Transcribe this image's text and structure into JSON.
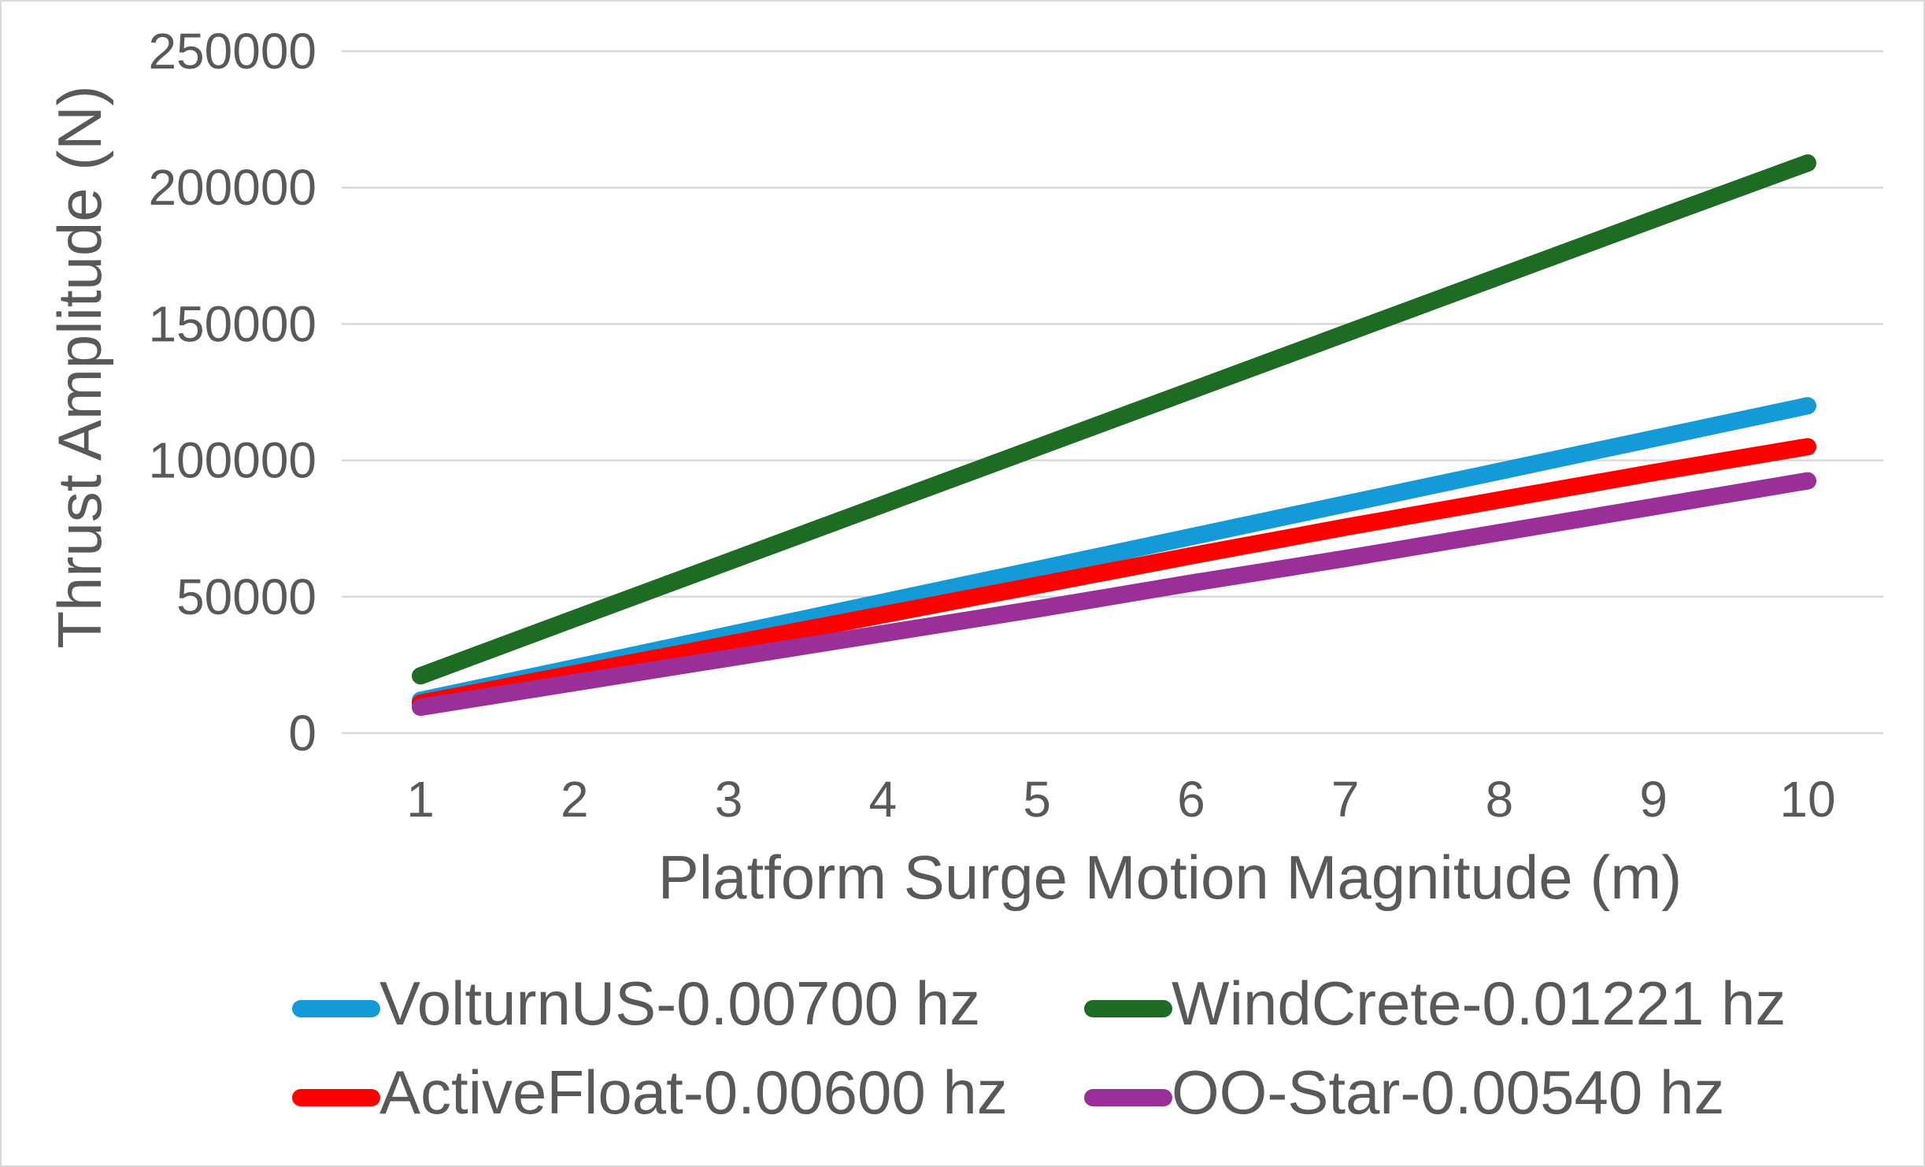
{
  "chart_data": {
    "type": "line",
    "title": "",
    "xlabel": "Platform Surge Motion Magnitude  (m)",
    "ylabel": "Thrust Amplitude  (N)",
    "x": [
      1,
      2,
      3,
      4,
      5,
      6,
      7,
      8,
      9,
      10
    ],
    "x_tick_labels": [
      "1",
      "2",
      "3",
      "4",
      "5",
      "6",
      "7",
      "8",
      "9",
      "10"
    ],
    "ylim": [
      0,
      250000
    ],
    "y_ticks": [
      0,
      50000,
      100000,
      150000,
      200000,
      250000
    ],
    "y_tick_labels": [
      "0",
      "50000",
      "100000",
      "150000",
      "200000",
      "250000"
    ],
    "grid": true,
    "legend_position": "bottom",
    "series": [
      {
        "name": "VolturnUS-0.00700 hz",
        "color": "#149bd7",
        "values": [
          12000,
          24000,
          36000,
          48000,
          60000,
          72000,
          84000,
          96000,
          108000,
          120000
        ]
      },
      {
        "name": "WindCrete-0.01221 hz",
        "color": "#1e6b23",
        "values": [
          21000,
          42000,
          62900,
          83800,
          104700,
          125600,
          146500,
          167400,
          188300,
          209000
        ]
      },
      {
        "name": "ActiveFloat-0.00600 hz",
        "color": "#ff0000",
        "values": [
          11000,
          21800,
          32600,
          43400,
          54200,
          65000,
          75500,
          85500,
          95500,
          105000
        ]
      },
      {
        "name": "OO-Star-0.00540 hz",
        "color": "#9b2f98",
        "values": [
          9500,
          18500,
          27500,
          36500,
          45500,
          55000,
          64000,
          73500,
          83000,
          92500
        ]
      }
    ]
  }
}
